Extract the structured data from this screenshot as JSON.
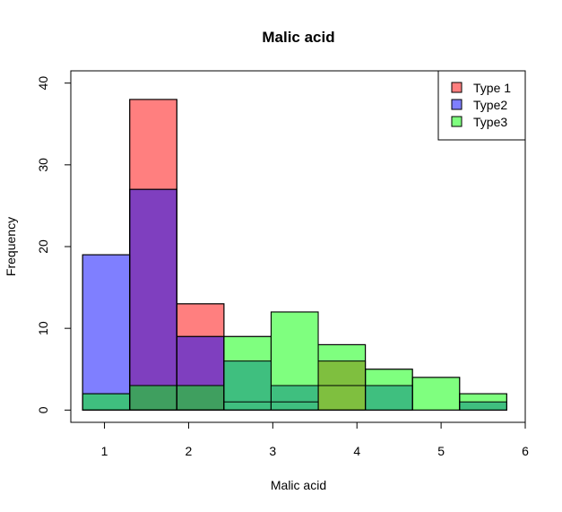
{
  "chart_data": {
    "type": "bar",
    "title": "Malic acid",
    "xlabel": "Malic acid",
    "ylabel": "Frequency",
    "xlim": [
      0.6,
      6.0
    ],
    "ylim": [
      -1.5,
      41.5
    ],
    "xticks": [
      "1",
      "2",
      "3",
      "4",
      "5",
      "6"
    ],
    "yticks": [
      "0",
      "10",
      "20",
      "30",
      "40"
    ],
    "bin_edges": [
      0.74,
      1.3,
      1.86,
      2.42,
      2.98,
      3.54,
      4.1,
      4.66,
      5.22,
      5.78
    ],
    "series": [
      {
        "name": "Type 1",
        "color": "#ff0000",
        "values": [
          0,
          38,
          13,
          1,
          1,
          3,
          0,
          0,
          0
        ]
      },
      {
        "name": "Type2",
        "color": "#0000ff",
        "values": [
          19,
          27,
          9,
          0,
          0,
          0,
          0,
          0,
          0
        ]
      },
      {
        "name": "Type3",
        "color": "#00ff00",
        "values": [
          2,
          3,
          3,
          9,
          12,
          8,
          5,
          4,
          2
        ]
      }
    ],
    "overlap_areas": [
      {
        "x0": 3.54,
        "x1": 4.1,
        "value": 6,
        "color": "#7fbf3f"
      },
      {
        "x0": 2.42,
        "x1": 2.98,
        "value": 6,
        "color": "#3fbf7f"
      },
      {
        "x0": 4.1,
        "x1": 4.66,
        "value": 3,
        "color": "#3fbf7f"
      },
      {
        "x0": 5.22,
        "x1": 5.78,
        "value": 1,
        "color": "#3fbf7f"
      },
      {
        "x0": 2.98,
        "x1": 3.54,
        "value": 3,
        "color": "#3fbf7f"
      }
    ],
    "legend_position": "top-right",
    "grid": false
  }
}
